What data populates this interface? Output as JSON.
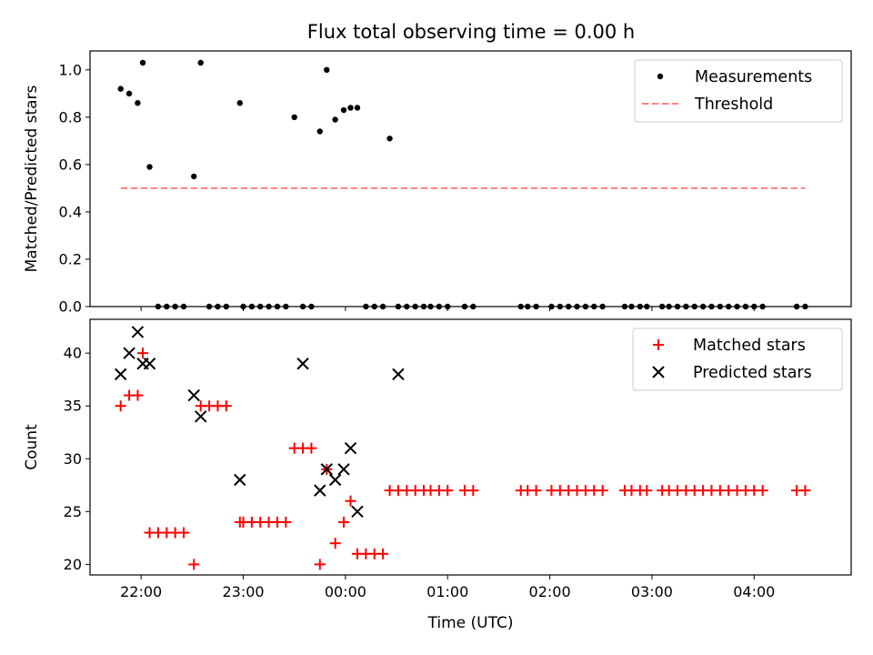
{
  "figure_title": "Flux total observing time = 0.00 h",
  "colors": {
    "measurement": "#000000",
    "threshold": "#ff8080",
    "matched": "#ff0000",
    "predicted": "#000000"
  },
  "chart_data": [
    {
      "type": "scatter",
      "ylabel": "Matched/Predicted stars",
      "ylim": [
        0,
        1.08
      ],
      "yticks": [
        "0.0",
        "0.2",
        "0.4",
        "0.6",
        "0.8",
        "1.0"
      ],
      "xlim_hours": [
        -2.5,
        4.95
      ],
      "xticks": [
        "22:00",
        "23:00",
        "00:00",
        "01:00",
        "02:00",
        "03:00",
        "04:00"
      ],
      "legend": {
        "placement": "top-right",
        "entries": [
          "Measurements",
          "Threshold"
        ]
      },
      "threshold": {
        "value": 0.5,
        "x_start": "21:48",
        "x_end": "04:30"
      },
      "series": [
        {
          "name": "Measurements",
          "marker": "dot",
          "x": [
            "21:48",
            "21:53",
            "21:58",
            "22:01",
            "22:05",
            "22:10",
            "22:15",
            "22:20",
            "22:25",
            "22:31",
            "22:35",
            "22:40",
            "22:45",
            "22:50",
            "22:58",
            "23:00",
            "23:05",
            "23:10",
            "23:15",
            "23:20",
            "23:25",
            "23:30",
            "23:35",
            "23:40",
            "23:45",
            "23:49",
            "23:54",
            "23:59",
            "00:03",
            "00:07",
            "00:12",
            "00:17",
            "00:22",
            "00:26",
            "00:31",
            "00:36",
            "00:41",
            "00:46",
            "00:50",
            "00:55",
            "01:00",
            "01:10",
            "01:15",
            "01:43",
            "01:47",
            "01:52",
            "02:01",
            "02:06",
            "02:11",
            "02:16",
            "02:21",
            "02:26",
            "02:31",
            "02:44",
            "02:48",
            "02:53",
            "02:57",
            "03:06",
            "03:10",
            "03:15",
            "03:20",
            "03:25",
            "03:30",
            "03:35",
            "03:40",
            "03:45",
            "03:50",
            "03:55",
            "04:00",
            "04:05",
            "04:25",
            "04:30"
          ],
          "y": [
            0.92,
            0.9,
            0.86,
            1.03,
            0.59,
            0,
            0,
            0,
            0,
            0.55,
            1.03,
            0,
            0,
            0,
            0.86,
            0,
            0,
            0,
            0,
            0,
            0,
            0.8,
            0,
            0,
            0.74,
            1.0,
            0.79,
            0.83,
            0.84,
            0.84,
            0,
            0,
            0,
            0.71,
            0,
            0,
            0,
            0,
            0,
            0,
            0,
            0,
            0,
            0,
            0,
            0,
            0,
            0,
            0,
            0,
            0,
            0,
            0,
            0,
            0,
            0,
            0,
            0,
            0,
            0,
            0,
            0,
            0,
            0,
            0,
            0,
            0,
            0,
            0,
            0,
            0,
            0
          ]
        }
      ]
    },
    {
      "type": "scatter",
      "ylabel": "Count",
      "xlabel": "Time (UTC)",
      "ylim": [
        19,
        43.2
      ],
      "yticks": [
        "20",
        "25",
        "30",
        "35",
        "40"
      ],
      "xlim_hours": [
        -2.5,
        4.95
      ],
      "xticks": [
        "22:00",
        "23:00",
        "00:00",
        "01:00",
        "02:00",
        "03:00",
        "04:00"
      ],
      "legend": {
        "placement": "top-right",
        "entries": [
          "Matched stars",
          "Predicted stars"
        ]
      },
      "series": [
        {
          "name": "Matched stars",
          "marker": "plus",
          "x": [
            "21:48",
            "21:53",
            "21:58",
            "22:01",
            "22:05",
            "22:10",
            "22:15",
            "22:20",
            "22:25",
            "22:31",
            "22:35",
            "22:40",
            "22:45",
            "22:50",
            "22:58",
            "23:00",
            "23:05",
            "23:10",
            "23:15",
            "23:20",
            "23:25",
            "23:30",
            "23:35",
            "23:40",
            "23:45",
            "23:49",
            "23:54",
            "23:59",
            "00:03",
            "00:07",
            "00:12",
            "00:17",
            "00:22",
            "00:26",
            "00:31",
            "00:36",
            "00:41",
            "00:46",
            "00:50",
            "00:55",
            "01:00",
            "01:10",
            "01:15",
            "01:43",
            "01:47",
            "01:52",
            "02:01",
            "02:06",
            "02:11",
            "02:16",
            "02:21",
            "02:26",
            "02:31",
            "02:44",
            "02:48",
            "02:53",
            "02:57",
            "03:06",
            "03:10",
            "03:15",
            "03:20",
            "03:25",
            "03:30",
            "03:35",
            "03:40",
            "03:45",
            "03:50",
            "03:55",
            "04:00",
            "04:05",
            "04:25",
            "04:30"
          ],
          "y": [
            35,
            36,
            36,
            40,
            23,
            23,
            23,
            23,
            23,
            20,
            35,
            35,
            35,
            35,
            24,
            24,
            24,
            24,
            24,
            24,
            24,
            31,
            31,
            31,
            20,
            29,
            22,
            24,
            26,
            21,
            21,
            21,
            21,
            27,
            27,
            27,
            27,
            27,
            27,
            27,
            27,
            27,
            27,
            27,
            27,
            27,
            27,
            27,
            27,
            27,
            27,
            27,
            27,
            27,
            27,
            27,
            27,
            27,
            27,
            27,
            27,
            27,
            27,
            27,
            27,
            27,
            27,
            27,
            27,
            27,
            27,
            27
          ]
        },
        {
          "name": "Predicted stars",
          "marker": "x",
          "x": [
            "21:48",
            "21:53",
            "21:58",
            "22:01",
            "22:05",
            "22:31",
            "22:35",
            "22:58",
            "23:35",
            "23:49",
            "23:54",
            "23:59",
            "00:03",
            "00:07",
            "00:31",
            "23:45"
          ],
          "y": [
            38,
            40,
            42,
            39,
            39,
            36,
            34,
            28,
            39,
            29,
            28,
            29,
            31,
            25,
            38,
            27
          ]
        }
      ]
    }
  ]
}
